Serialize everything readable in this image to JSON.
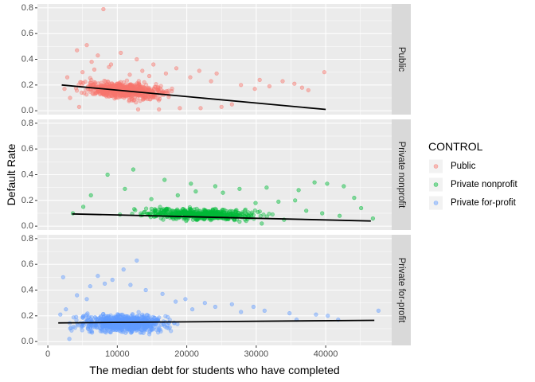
{
  "chart_data": {
    "type": "scatter",
    "facets": [
      "Public",
      "Private nonprofit",
      "Private for-profit"
    ],
    "xlabel": "The median debt for students who have completed",
    "ylabel": "Default Rate",
    "x_ticks": [
      0,
      10000,
      20000,
      30000,
      40000
    ],
    "y_ticks": [
      0.0,
      0.2,
      0.4,
      0.6,
      0.8
    ],
    "xlim": [
      -1500,
      49500
    ],
    "ylim": [
      -0.03,
      0.83
    ],
    "grid": true,
    "legend": {
      "title": "CONTROL",
      "position": "right",
      "entries": [
        "Public",
        "Private nonprofit",
        "Private for-profit"
      ]
    },
    "series": [
      {
        "name": "Public",
        "color": "#F8766D",
        "trend": {
          "x": [
            2000,
            40000
          ],
          "y": [
            0.2,
            0.01
          ]
        },
        "points": [
          [
            8000,
            0.79
          ],
          [
            5600,
            0.51
          ],
          [
            4200,
            0.47
          ],
          [
            10500,
            0.45
          ],
          [
            7200,
            0.43
          ],
          [
            12800,
            0.4
          ],
          [
            6300,
            0.38
          ],
          [
            15200,
            0.36
          ],
          [
            9100,
            0.36
          ],
          [
            18500,
            0.33
          ],
          [
            21800,
            0.31
          ],
          [
            24300,
            0.29
          ],
          [
            11800,
            0.28
          ],
          [
            14600,
            0.27
          ],
          [
            5000,
            0.3
          ],
          [
            39800,
            0.3
          ],
          [
            35500,
            0.21
          ],
          [
            31900,
            0.19
          ],
          [
            33800,
            0.23
          ],
          [
            29800,
            0.17
          ],
          [
            37500,
            0.16
          ],
          [
            30500,
            0.24
          ],
          [
            27800,
            0.2
          ],
          [
            36600,
            0.18
          ],
          [
            2800,
            0.26
          ],
          [
            3200,
            0.1
          ],
          [
            2400,
            0.17
          ],
          [
            26500,
            0.05
          ],
          [
            25000,
            0.03
          ],
          [
            22000,
            0.02
          ],
          [
            19000,
            0.02
          ],
          [
            16000,
            0.01
          ],
          [
            13000,
            0.01
          ],
          [
            4500,
            0.03
          ],
          [
            6700,
            0.32
          ],
          [
            8800,
            0.34
          ],
          [
            13600,
            0.31
          ],
          [
            17000,
            0.29
          ],
          [
            20500,
            0.26
          ],
          [
            23500,
            0.23
          ]
        ],
        "cloud": {
          "x0": 3500,
          "x1": 27000,
          "center": 11000,
          "spread": 5500,
          "n": 700,
          "y_base": 0.16,
          "y_slope": -3.5e-06,
          "y_sd": 0.06,
          "y_min": 0.0,
          "y_max": 0.3
        }
      },
      {
        "name": "Private nonprofit",
        "color": "#00BA38",
        "trend": {
          "x": [
            3500,
            46500
          ],
          "y": [
            0.095,
            0.04
          ]
        },
        "points": [
          [
            8600,
            0.4
          ],
          [
            12300,
            0.44
          ],
          [
            16800,
            0.36
          ],
          [
            20600,
            0.33
          ],
          [
            24100,
            0.31
          ],
          [
            27600,
            0.29
          ],
          [
            31500,
            0.3
          ],
          [
            36100,
            0.28
          ],
          [
            40200,
            0.33
          ],
          [
            42600,
            0.31
          ],
          [
            38400,
            0.34
          ],
          [
            45100,
            0.14
          ],
          [
            33200,
            0.19
          ],
          [
            29900,
            0.18
          ],
          [
            35600,
            0.2
          ],
          [
            44100,
            0.22
          ],
          [
            6200,
            0.24
          ],
          [
            11100,
            0.29
          ],
          [
            14900,
            0.21
          ],
          [
            18700,
            0.24
          ],
          [
            21300,
            0.27
          ],
          [
            25200,
            0.26
          ],
          [
            46800,
            0.06
          ],
          [
            3600,
            0.1
          ],
          [
            5100,
            0.15
          ],
          [
            39500,
            0.1
          ],
          [
            42000,
            0.08
          ],
          [
            37200,
            0.12
          ],
          [
            34000,
            0.05
          ],
          [
            30800,
            0.02
          ]
        ],
        "cloud": {
          "x0": 4000,
          "x1": 38000,
          "center": 22000,
          "spread": 8000,
          "n": 520,
          "y_base": 0.09,
          "y_slope": -1.2e-06,
          "y_sd": 0.04,
          "y_min": 0.0,
          "y_max": 0.22
        }
      },
      {
        "name": "Private for-profit",
        "color": "#619CFF",
        "trend": {
          "x": [
            1500,
            47000
          ],
          "y": [
            0.145,
            0.165
          ]
        },
        "points": [
          [
            12800,
            0.63
          ],
          [
            2200,
            0.5
          ],
          [
            7200,
            0.51
          ],
          [
            9300,
            0.48
          ],
          [
            10900,
            0.56
          ],
          [
            8200,
            0.45
          ],
          [
            11900,
            0.44
          ],
          [
            6100,
            0.43
          ],
          [
            14100,
            0.4
          ],
          [
            16500,
            0.37
          ],
          [
            19800,
            0.33
          ],
          [
            22600,
            0.3
          ],
          [
            26500,
            0.29
          ],
          [
            29600,
            0.27
          ],
          [
            31200,
            0.24
          ],
          [
            34800,
            0.22
          ],
          [
            38600,
            0.21
          ],
          [
            41800,
            0.17
          ],
          [
            47600,
            0.24
          ],
          [
            1800,
            0.21
          ],
          [
            2600,
            0.25
          ],
          [
            3100,
            0.02
          ],
          [
            5600,
            0.33
          ],
          [
            4200,
            0.36
          ],
          [
            35800,
            0.17
          ],
          [
            40300,
            0.2
          ],
          [
            24100,
            0.27
          ],
          [
            27800,
            0.23
          ],
          [
            20800,
            0.25
          ],
          [
            18400,
            0.31
          ]
        ],
        "cloud": {
          "x0": 3000,
          "x1": 32000,
          "center": 11000,
          "spread": 6000,
          "n": 720,
          "y_base": 0.14,
          "y_slope": 0.0,
          "y_sd": 0.065,
          "y_min": 0.0,
          "y_max": 0.36
        }
      }
    ]
  }
}
